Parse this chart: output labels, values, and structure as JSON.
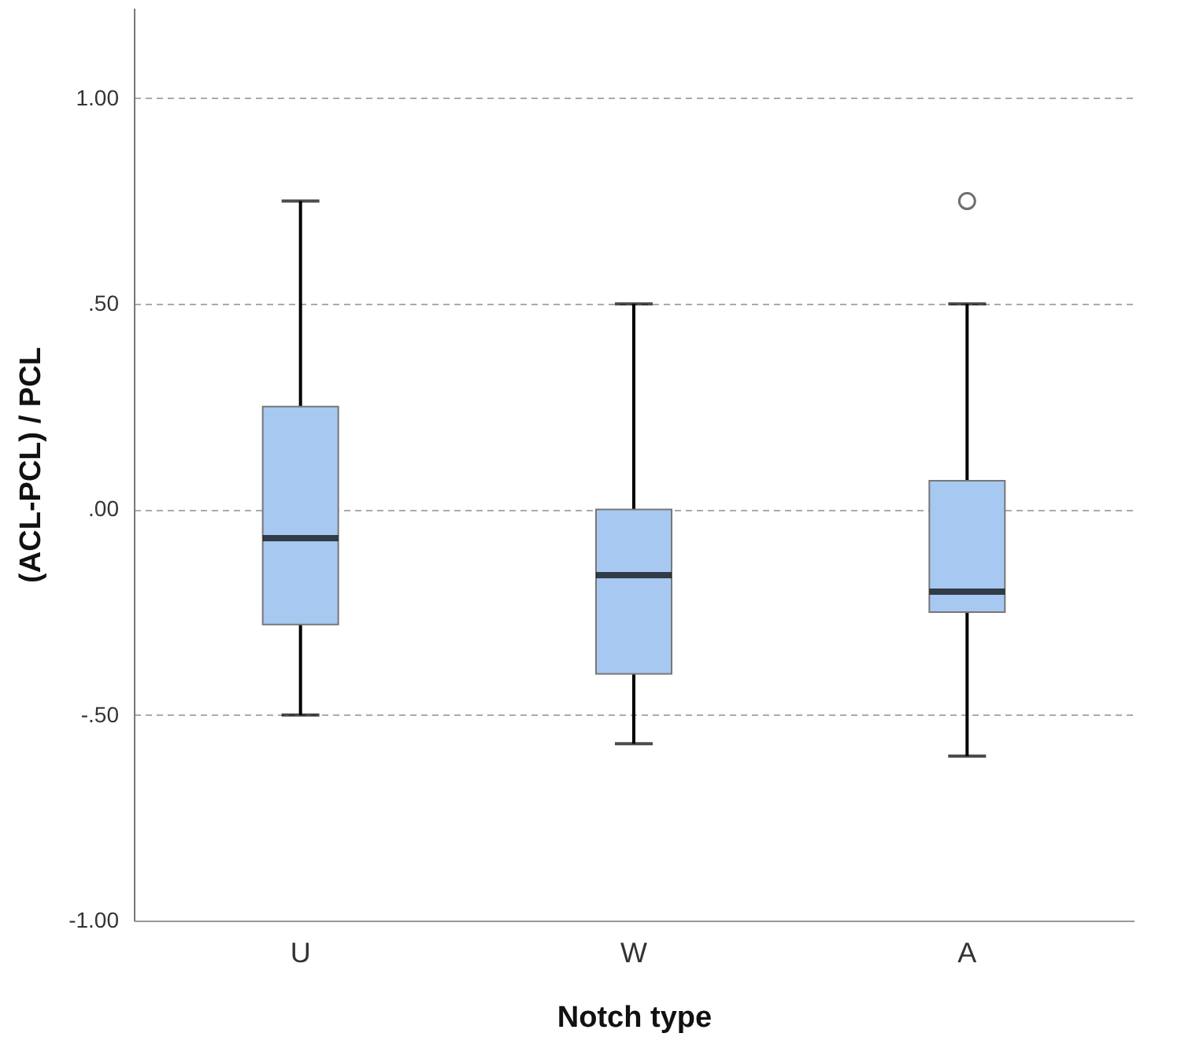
{
  "chart_data": {
    "type": "box",
    "xlabel": "Notch type",
    "ylabel": "(ACL-PCL) / PCL",
    "categories": [
      "U",
      "W",
      "A"
    ],
    "boxes": [
      {
        "low": -0.5,
        "q1": -0.28,
        "median": -0.07,
        "q3": 0.25,
        "high": 0.75
      },
      {
        "low": -0.57,
        "q1": -0.4,
        "median": -0.16,
        "q3": 0.0,
        "high": 0.5
      },
      {
        "low": -0.6,
        "q1": -0.25,
        "median": -0.2,
        "q3": 0.07,
        "high": 0.5,
        "outliers": [
          0.75
        ]
      }
    ],
    "color": "#a7c8f0",
    "ylim": [
      -1.0,
      1.22
    ],
    "yticks": [
      {
        "value": -1.0,
        "label": "-1.00"
      },
      {
        "value": -0.5,
        "label": "-.50"
      },
      {
        "value": 0.0,
        "label": ".00"
      },
      {
        "value": 0.5,
        "label": ".50"
      },
      {
        "value": 1.0,
        "label": "1.00"
      }
    ],
    "grid": "y"
  }
}
